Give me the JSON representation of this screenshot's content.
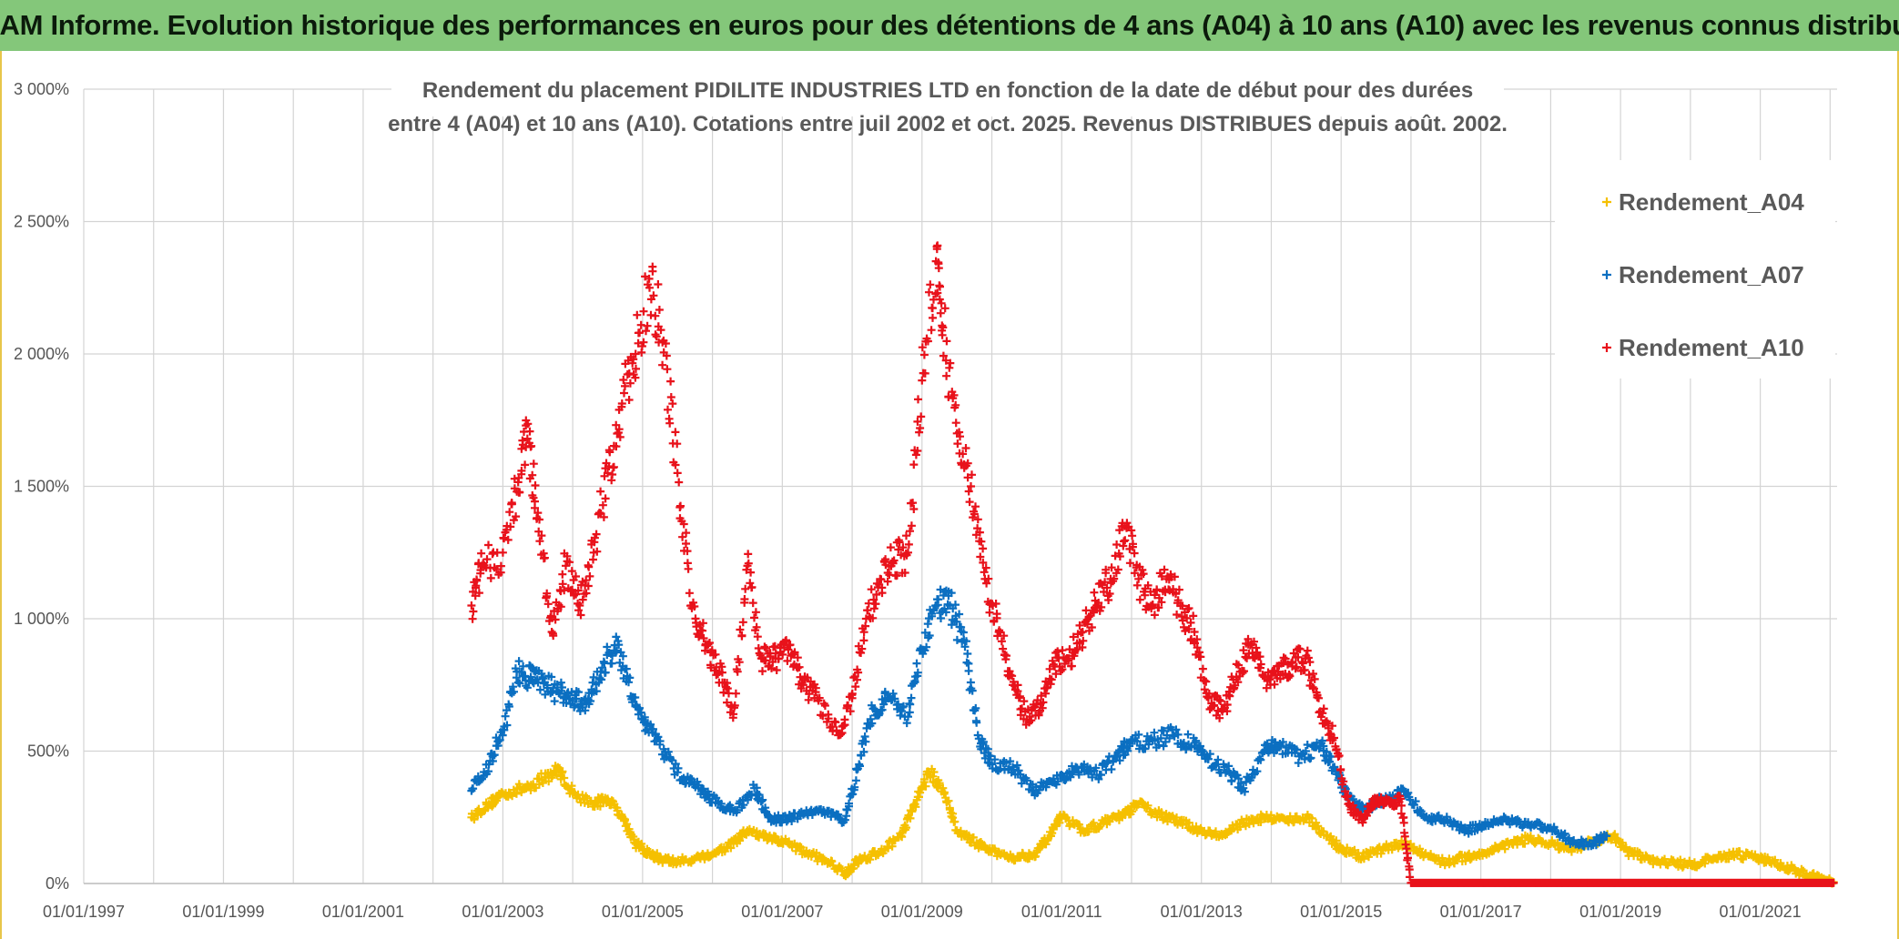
{
  "banner": {
    "text": "ADAM Informe. Evolution historique des performances en euros pour des détentions de 4 ans (A04) à 10 ans (A10) avec les revenus connus distribués"
  },
  "chart_data": {
    "type": "scatter",
    "title_line1": "Rendement du placement PIDILITE INDUSTRIES LTD en fonction de la date de début pour des durées",
    "title_line2": "entre 4 (A04) et 10 ans (A10). Cotations entre juil 2002 et oct. 2025. Revenus DISTRIBUES depuis août. 2002.",
    "x_unit": "years (decimal year of start date)",
    "xlim": [
      1997.0,
      2022.1
    ],
    "ylim": [
      0,
      3000
    ],
    "y_ticks": [
      0,
      500,
      1000,
      1500,
      2000,
      2500,
      3000
    ],
    "y_tick_labels": [
      "0%",
      "500%",
      "1 000%",
      "1 500%",
      "2 000%",
      "2 500%",
      "3 000%"
    ],
    "x_ticks": [
      1997,
      1999,
      2001,
      2003,
      2005,
      2007,
      2009,
      2011,
      2013,
      2015,
      2017,
      2019,
      2021
    ],
    "x_tick_labels": [
      "01/01/1997",
      "01/01/1999",
      "01/01/2001",
      "01/01/2003",
      "01/01/2005",
      "01/01/2007",
      "01/01/2009",
      "01/01/2011",
      "01/01/2013",
      "01/01/2015",
      "01/01/2017",
      "01/01/2019",
      "01/01/2021"
    ],
    "grid": true,
    "legend_position": "top-right",
    "series": [
      {
        "name": "Rendement_A04",
        "color": "#f5c000",
        "points": [
          [
            2002.55,
            250
          ],
          [
            2002.8,
            300
          ],
          [
            2003.0,
            340
          ],
          [
            2003.3,
            360
          ],
          [
            2003.6,
            400
          ],
          [
            2003.8,
            430
          ],
          [
            2004.0,
            340
          ],
          [
            2004.3,
            300
          ],
          [
            2004.5,
            320
          ],
          [
            2004.7,
            260
          ],
          [
            2004.9,
            150
          ],
          [
            2005.1,
            110
          ],
          [
            2005.3,
            90
          ],
          [
            2005.5,
            80
          ],
          [
            2005.8,
            100
          ],
          [
            2006.0,
            110
          ],
          [
            2006.3,
            150
          ],
          [
            2006.5,
            200
          ],
          [
            2006.8,
            170
          ],
          [
            2007.0,
            160
          ],
          [
            2007.3,
            120
          ],
          [
            2007.6,
            90
          ],
          [
            2007.9,
            40
          ],
          [
            2008.1,
            90
          ],
          [
            2008.4,
            120
          ],
          [
            2008.7,
            180
          ],
          [
            2008.9,
            300
          ],
          [
            2009.1,
            420
          ],
          [
            2009.3,
            360
          ],
          [
            2009.5,
            200
          ],
          [
            2009.8,
            150
          ],
          [
            2010.0,
            120
          ],
          [
            2010.3,
            100
          ],
          [
            2010.6,
            110
          ],
          [
            2010.8,
            170
          ],
          [
            2011.0,
            250
          ],
          [
            2011.3,
            200
          ],
          [
            2011.6,
            230
          ],
          [
            2011.9,
            260
          ],
          [
            2012.1,
            300
          ],
          [
            2012.4,
            260
          ],
          [
            2012.7,
            230
          ],
          [
            2013.0,
            200
          ],
          [
            2013.3,
            180
          ],
          [
            2013.6,
            230
          ],
          [
            2013.9,
            250
          ],
          [
            2014.2,
            240
          ],
          [
            2014.5,
            250
          ],
          [
            2014.8,
            180
          ],
          [
            2015.0,
            130
          ],
          [
            2015.3,
            100
          ],
          [
            2015.6,
            130
          ],
          [
            2015.9,
            150
          ],
          [
            2016.2,
            110
          ],
          [
            2016.5,
            80
          ],
          [
            2016.8,
            100
          ],
          [
            2017.1,
            120
          ],
          [
            2017.4,
            150
          ],
          [
            2017.7,
            170
          ],
          [
            2018.0,
            150
          ],
          [
            2018.3,
            120
          ],
          [
            2018.6,
            160
          ],
          [
            2018.9,
            180
          ],
          [
            2019.1,
            120
          ],
          [
            2019.4,
            90
          ],
          [
            2019.7,
            80
          ],
          [
            2020.0,
            70
          ],
          [
            2020.3,
            90
          ],
          [
            2020.6,
            110
          ],
          [
            2020.9,
            100
          ],
          [
            2021.2,
            80
          ],
          [
            2021.5,
            50
          ],
          [
            2021.8,
            20
          ],
          [
            2022.05,
            5
          ]
        ]
      },
      {
        "name": "Rendement_A07",
        "color": "#0b6fc1",
        "points": [
          [
            2002.55,
            350
          ],
          [
            2002.8,
            450
          ],
          [
            2003.0,
            580
          ],
          [
            2003.2,
            800
          ],
          [
            2003.4,
            780
          ],
          [
            2003.6,
            760
          ],
          [
            2003.8,
            720
          ],
          [
            2004.0,
            690
          ],
          [
            2004.2,
            680
          ],
          [
            2004.4,
            800
          ],
          [
            2004.6,
            900
          ],
          [
            2004.8,
            760
          ],
          [
            2005.0,
            620
          ],
          [
            2005.2,
            540
          ],
          [
            2005.5,
            420
          ],
          [
            2005.8,
            360
          ],
          [
            2006.0,
            320
          ],
          [
            2006.3,
            270
          ],
          [
            2006.6,
            360
          ],
          [
            2006.8,
            250
          ],
          [
            2007.0,
            240
          ],
          [
            2007.3,
            260
          ],
          [
            2007.6,
            270
          ],
          [
            2007.9,
            240
          ],
          [
            2008.1,
            450
          ],
          [
            2008.3,
            660
          ],
          [
            2008.5,
            700
          ],
          [
            2008.8,
            630
          ],
          [
            2009.0,
            880
          ],
          [
            2009.2,
            1050
          ],
          [
            2009.4,
            1050
          ],
          [
            2009.6,
            920
          ],
          [
            2009.8,
            560
          ],
          [
            2010.0,
            450
          ],
          [
            2010.3,
            440
          ],
          [
            2010.6,
            350
          ],
          [
            2010.9,
            380
          ],
          [
            2011.2,
            440
          ],
          [
            2011.5,
            410
          ],
          [
            2011.8,
            480
          ],
          [
            2012.0,
            540
          ],
          [
            2012.3,
            540
          ],
          [
            2012.6,
            560
          ],
          [
            2012.9,
            520
          ],
          [
            2013.1,
            470
          ],
          [
            2013.4,
            420
          ],
          [
            2013.6,
            360
          ],
          [
            2013.9,
            500
          ],
          [
            2014.1,
            520
          ],
          [
            2014.4,
            480
          ],
          [
            2014.7,
            520
          ],
          [
            2014.9,
            440
          ],
          [
            2015.1,
            320
          ],
          [
            2015.3,
            280
          ],
          [
            2015.6,
            320
          ],
          [
            2015.9,
            350
          ],
          [
            2016.2,
            250
          ],
          [
            2016.5,
            240
          ],
          [
            2016.8,
            200
          ],
          [
            2017.1,
            230
          ],
          [
            2017.4,
            240
          ],
          [
            2017.7,
            220
          ],
          [
            2018.0,
            210
          ],
          [
            2018.3,
            160
          ],
          [
            2018.6,
            150
          ],
          [
            2018.8,
            180
          ]
        ]
      },
      {
        "name": "Rendement_A10",
        "color": "#e8121b",
        "points": [
          [
            2002.55,
            1050
          ],
          [
            2002.7,
            1200
          ],
          [
            2003.0,
            1250
          ],
          [
            2003.2,
            1480
          ],
          [
            2003.35,
            1680
          ],
          [
            2003.5,
            1400
          ],
          [
            2003.7,
            950
          ],
          [
            2003.9,
            1200
          ],
          [
            2004.1,
            1050
          ],
          [
            2004.3,
            1250
          ],
          [
            2004.5,
            1550
          ],
          [
            2004.7,
            1800
          ],
          [
            2004.9,
            2000
          ],
          [
            2005.1,
            2250
          ],
          [
            2005.3,
            2050
          ],
          [
            2005.5,
            1550
          ],
          [
            2005.7,
            1050
          ],
          [
            2005.9,
            900
          ],
          [
            2006.1,
            800
          ],
          [
            2006.3,
            640
          ],
          [
            2006.5,
            1200
          ],
          [
            2006.7,
            850
          ],
          [
            2006.9,
            850
          ],
          [
            2007.1,
            900
          ],
          [
            2007.3,
            750
          ],
          [
            2007.5,
            700
          ],
          [
            2007.8,
            560
          ],
          [
            2008.0,
            700
          ],
          [
            2008.2,
            1000
          ],
          [
            2008.4,
            1150
          ],
          [
            2008.6,
            1220
          ],
          [
            2008.8,
            1250
          ],
          [
            2009.0,
            1900
          ],
          [
            2009.2,
            2350
          ],
          [
            2009.3,
            2100
          ],
          [
            2009.5,
            1700
          ],
          [
            2009.7,
            1500
          ],
          [
            2009.9,
            1150
          ],
          [
            2010.1,
            950
          ],
          [
            2010.3,
            750
          ],
          [
            2010.5,
            620
          ],
          [
            2010.7,
            680
          ],
          [
            2010.9,
            820
          ],
          [
            2011.1,
            850
          ],
          [
            2011.3,
            950
          ],
          [
            2011.5,
            1050
          ],
          [
            2011.7,
            1150
          ],
          [
            2011.9,
            1350
          ],
          [
            2012.1,
            1150
          ],
          [
            2012.3,
            1050
          ],
          [
            2012.5,
            1150
          ],
          [
            2012.7,
            1050
          ],
          [
            2012.9,
            950
          ],
          [
            2013.1,
            700
          ],
          [
            2013.3,
            650
          ],
          [
            2013.5,
            780
          ],
          [
            2013.7,
            900
          ],
          [
            2013.9,
            780
          ],
          [
            2014.1,
            800
          ],
          [
            2014.3,
            820
          ],
          [
            2014.5,
            860
          ],
          [
            2014.7,
            650
          ],
          [
            2014.9,
            550
          ],
          [
            2015.1,
            300
          ],
          [
            2015.3,
            240
          ],
          [
            2015.5,
            320
          ],
          [
            2015.7,
            300
          ],
          [
            2015.85,
            320
          ],
          [
            2016.0,
            2
          ],
          [
            2017.0,
            2
          ],
          [
            2018.0,
            2
          ],
          [
            2019.0,
            2
          ],
          [
            2020.0,
            2
          ],
          [
            2021.0,
            2
          ],
          [
            2022.05,
            2
          ]
        ]
      }
    ]
  }
}
